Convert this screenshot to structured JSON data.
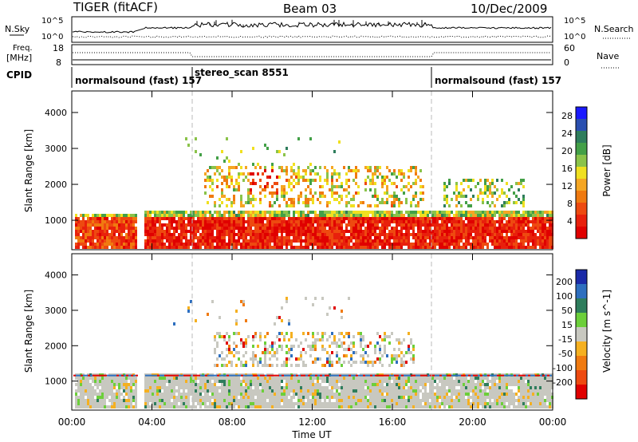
{
  "header": {
    "radar": "TIGER (fitACF)",
    "beam": "Beam 03",
    "date": "10/Dec/2009"
  },
  "strips": {
    "nsky_label": "N.Sky",
    "nsky_ticks": [
      "10^5",
      "10^0"
    ],
    "nsearch_label": "N.Search",
    "nsearch_ticks": [
      "10^5",
      "10^0"
    ],
    "freq_label": "Freq.",
    "freq_unit": "[MHz]",
    "freq_ticks": [
      "18",
      "8"
    ],
    "nave_label": "Nave",
    "nave_ticks": [
      "60",
      "0"
    ],
    "cpid_label": "CPID",
    "cpid_segments": [
      {
        "label": "normalsound (fast) 157",
        "start_hour": 0.0
      },
      {
        "label": "stereo_scan 8551",
        "start_hour": 6.0
      },
      {
        "label": "normalsound (fast) 157",
        "start_hour": 18.0
      }
    ]
  },
  "chart_data": [
    {
      "type": "heatmap",
      "title": "",
      "xlabel": "Time UT",
      "ylabel": "Slant Range [km]",
      "x_ticks": [
        "00:00",
        "04:00",
        "08:00",
        "12:00",
        "16:00",
        "20:00",
        "00:00"
      ],
      "x_range_hours": [
        0,
        24
      ],
      "y_ticks": [
        1000,
        2000,
        3000,
        4000
      ],
      "y_range_km": [
        180,
        4600
      ],
      "colorbar": {
        "label": "Power [dB]",
        "ticks": [
          4,
          8,
          12,
          16,
          20,
          24,
          28
        ],
        "range": [
          0,
          30
        ],
        "colors": [
          "#1a1aff",
          "#2a4fb0",
          "#2e7d5c",
          "#43a047",
          "#8bc34a",
          "#f0e020",
          "#f5a623",
          "#f07a10",
          "#ee4a10",
          "#e8200c",
          "#e00000"
        ]
      },
      "data_gap_hours": [
        3.2,
        3.55
      ],
      "echo_regions": [
        {
          "t0": 0.1,
          "t1": 3.15,
          "r0": 250,
          "r1": 1250,
          "value": 24
        },
        {
          "t0": 3.6,
          "t1": 23.95,
          "r0": 250,
          "r1": 1300,
          "value": 26
        },
        {
          "t0": 6.5,
          "t1": 17.5,
          "r0": 1400,
          "r1": 2600,
          "value": 18
        },
        {
          "t0": 8.8,
          "t1": 10.2,
          "r0": 1800,
          "r1": 2500,
          "value": 27
        },
        {
          "t0": 18.5,
          "t1": 22.5,
          "r0": 1400,
          "r1": 2200,
          "value": 14
        }
      ]
    },
    {
      "type": "heatmap",
      "title": "",
      "xlabel": "Time UT",
      "ylabel": "Slant Range [km]",
      "x_ticks": [
        "00:00",
        "04:00",
        "08:00",
        "12:00",
        "16:00",
        "20:00",
        "00:00"
      ],
      "x_range_hours": [
        0,
        24
      ],
      "y_ticks": [
        1000,
        2000,
        3000,
        4000
      ],
      "y_range_km": [
        180,
        4600
      ],
      "colorbar": {
        "label": "Velocity [m s^-1]",
        "ticks": [
          200,
          100,
          50,
          15,
          -15,
          -50,
          -100,
          -200
        ],
        "range": [
          -250,
          250
        ],
        "colors": [
          "#1a2aa8",
          "#2e6fbf",
          "#2e7d5c",
          "#6ccf3a",
          "#c8c8c0",
          "#f5b020",
          "#f07a10",
          "#ee4a10",
          "#e00000"
        ]
      },
      "data_gap_hours": [
        3.2,
        3.55
      ],
      "echo_regions": [
        {
          "t0": 0.1,
          "t1": 3.15,
          "r0": 250,
          "r1": 1250,
          "value": 0
        },
        {
          "t0": 3.6,
          "t1": 23.95,
          "r0": 250,
          "r1": 1300,
          "value": 0
        },
        {
          "t0": 9.0,
          "t1": 9.9,
          "r0": 1850,
          "r1": 2350,
          "value": -180
        },
        {
          "t0": 7.0,
          "t1": 17.0,
          "r0": 1400,
          "r1": 2400,
          "value": -10
        }
      ]
    }
  ]
}
